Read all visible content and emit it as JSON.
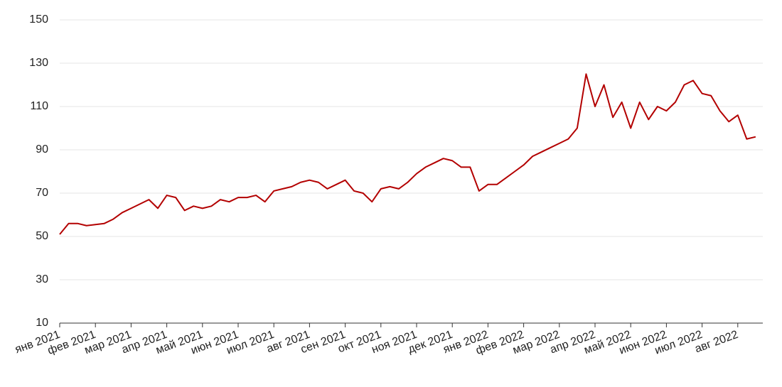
{
  "chart_data": {
    "type": "line",
    "categories": [
      "янв 2021",
      null,
      null,
      null,
      "фев 2021",
      null,
      null,
      null,
      "мар 2021",
      null,
      null,
      null,
      "апр 2021",
      null,
      null,
      null,
      "май 2021",
      null,
      null,
      null,
      "июн 2021",
      null,
      null,
      null,
      "июл 2021",
      null,
      null,
      null,
      "авг 2021",
      null,
      null,
      null,
      "сен 2021",
      null,
      null,
      null,
      "окт 2021",
      null,
      null,
      null,
      "ноя 2021",
      null,
      null,
      null,
      "дек 2021",
      null,
      null,
      null,
      "янв 2022",
      null,
      null,
      null,
      "фев 2022",
      null,
      null,
      null,
      "мар 2022",
      null,
      null,
      null,
      "апр 2022",
      null,
      null,
      null,
      "май 2022",
      null,
      null,
      null,
      "июн 2022",
      null,
      null,
      null,
      "июл 2022",
      null,
      null,
      null,
      "авг 2022",
      null,
      null
    ],
    "series": [
      {
        "color": "#b30000",
        "values": [
          51,
          56,
          56,
          55,
          55.5,
          56,
          58,
          61,
          63,
          65,
          67,
          63,
          69,
          68,
          62,
          64,
          63,
          64,
          67,
          66,
          68,
          68,
          69,
          66,
          71,
          72,
          73,
          75,
          76,
          75,
          72,
          74,
          76,
          71,
          70,
          66,
          72,
          73,
          72,
          75,
          79,
          82,
          84,
          86,
          85,
          82,
          82,
          71,
          74,
          74,
          77,
          80,
          83,
          87,
          89,
          91,
          93,
          95,
          100,
          125,
          110,
          120,
          105,
          112,
          100,
          112,
          104,
          110,
          108,
          112,
          120,
          122,
          116,
          115,
          108,
          103,
          106,
          95,
          96
        ]
      }
    ],
    "ylim": [
      10,
      150
    ],
    "yticks": [
      10,
      30,
      50,
      70,
      90,
      110,
      130,
      150
    ],
    "grid": true
  }
}
